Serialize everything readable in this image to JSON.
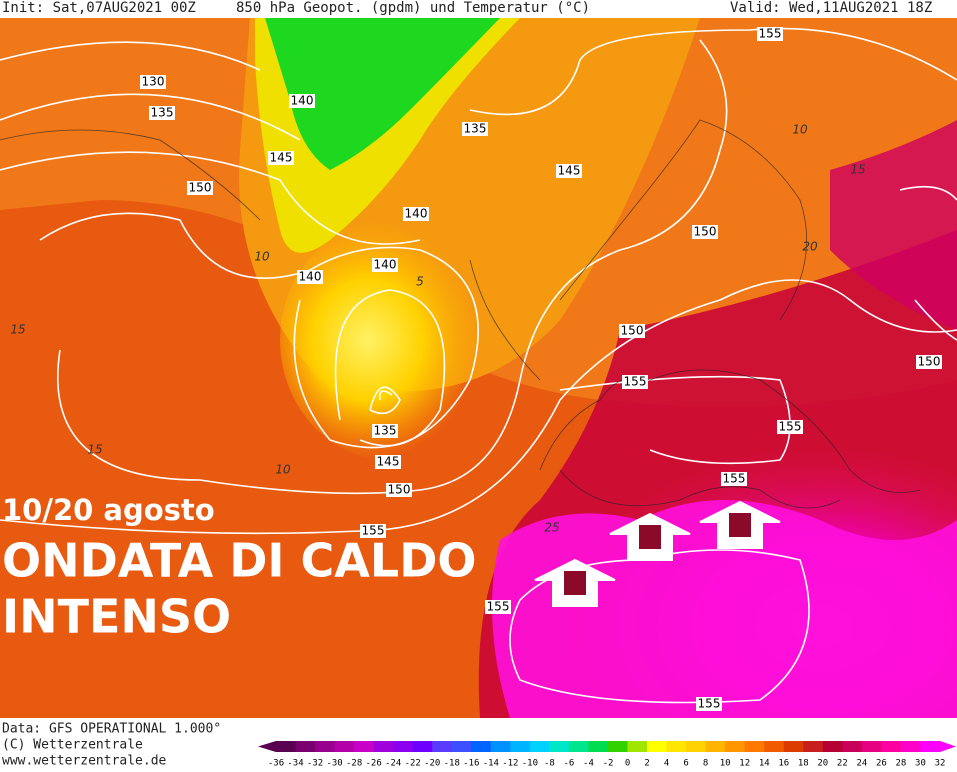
{
  "header": {
    "init": "Init: Sat,07AUG2021 00Z",
    "title": "850 hPa Geopot. (gpdm) und Temperatur (°C)",
    "valid": "Valid: Wed,11AUG2021 18Z"
  },
  "overlay": {
    "dates": "10/20 agosto",
    "line1": "ONDATA DI CALDO",
    "line2": "INTENSO"
  },
  "geopotential_labels": [
    130,
    135,
    140,
    145,
    150,
    140,
    135,
    145,
    140,
    140,
    150,
    150,
    155,
    155,
    150,
    135,
    145,
    150,
    155,
    155,
    155,
    155,
    155
  ],
  "temperature_labels": [
    10,
    15,
    5,
    10,
    15,
    20,
    10,
    15,
    25
  ],
  "footer": {
    "data": "Data: GFS OPERATIONAL 1.000°",
    "copyright": "(C) Wetterzentrale",
    "url": "www.wetterzentrale.de"
  },
  "scale": {
    "ticks": [
      -36,
      -34,
      -32,
      -30,
      -28,
      -26,
      -24,
      -22,
      -20,
      -18,
      -16,
      -14,
      -12,
      -10,
      -8,
      -6,
      -4,
      -2,
      0,
      2,
      4,
      6,
      8,
      10,
      12,
      14,
      16,
      18,
      20,
      22,
      24,
      26,
      28,
      30,
      32
    ],
    "colors": [
      "#5a0050",
      "#7a0070",
      "#96008c",
      "#b400a8",
      "#c800c8",
      "#a000dc",
      "#8c00f0",
      "#6e00ff",
      "#5a3cff",
      "#3c50ff",
      "#0064ff",
      "#0090ff",
      "#00b4ff",
      "#00d2ff",
      "#00e6c8",
      "#00e68c",
      "#00dc50",
      "#32d200",
      "#a0e600",
      "#ffff00",
      "#ffe600",
      "#ffd200",
      "#ffb400",
      "#ff9600",
      "#ff7800",
      "#f05a00",
      "#dc3c00",
      "#c81e1e",
      "#b40032",
      "#c8005a",
      "#e60082",
      "#ff00a0",
      "#ff00c8",
      "#ff00ff"
    ]
  }
}
